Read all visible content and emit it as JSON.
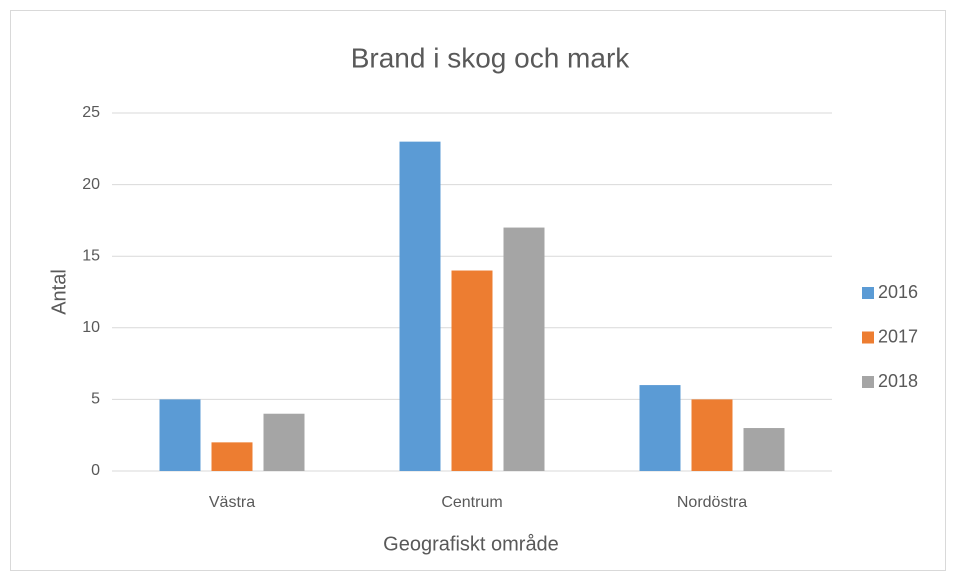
{
  "chart_data": {
    "type": "bar",
    "title": "Brand i skog och mark",
    "x_label": "Geografiskt område",
    "y_label": "Antal",
    "categories": [
      "Västra",
      "Centrum",
      "Nordöstra"
    ],
    "series": [
      {
        "name": "2016",
        "color": "#5b9bd5",
        "values": [
          5,
          23,
          6
        ]
      },
      {
        "name": "2017",
        "color": "#ed7d31",
        "values": [
          2,
          14,
          5
        ]
      },
      {
        "name": "2018",
        "color": "#a5a5a5",
        "values": [
          4,
          17,
          3
        ]
      }
    ],
    "ylim": [
      0,
      25
    ],
    "yticks": [
      0,
      5,
      10,
      15,
      20,
      25
    ],
    "grid": true,
    "legend": "right"
  }
}
